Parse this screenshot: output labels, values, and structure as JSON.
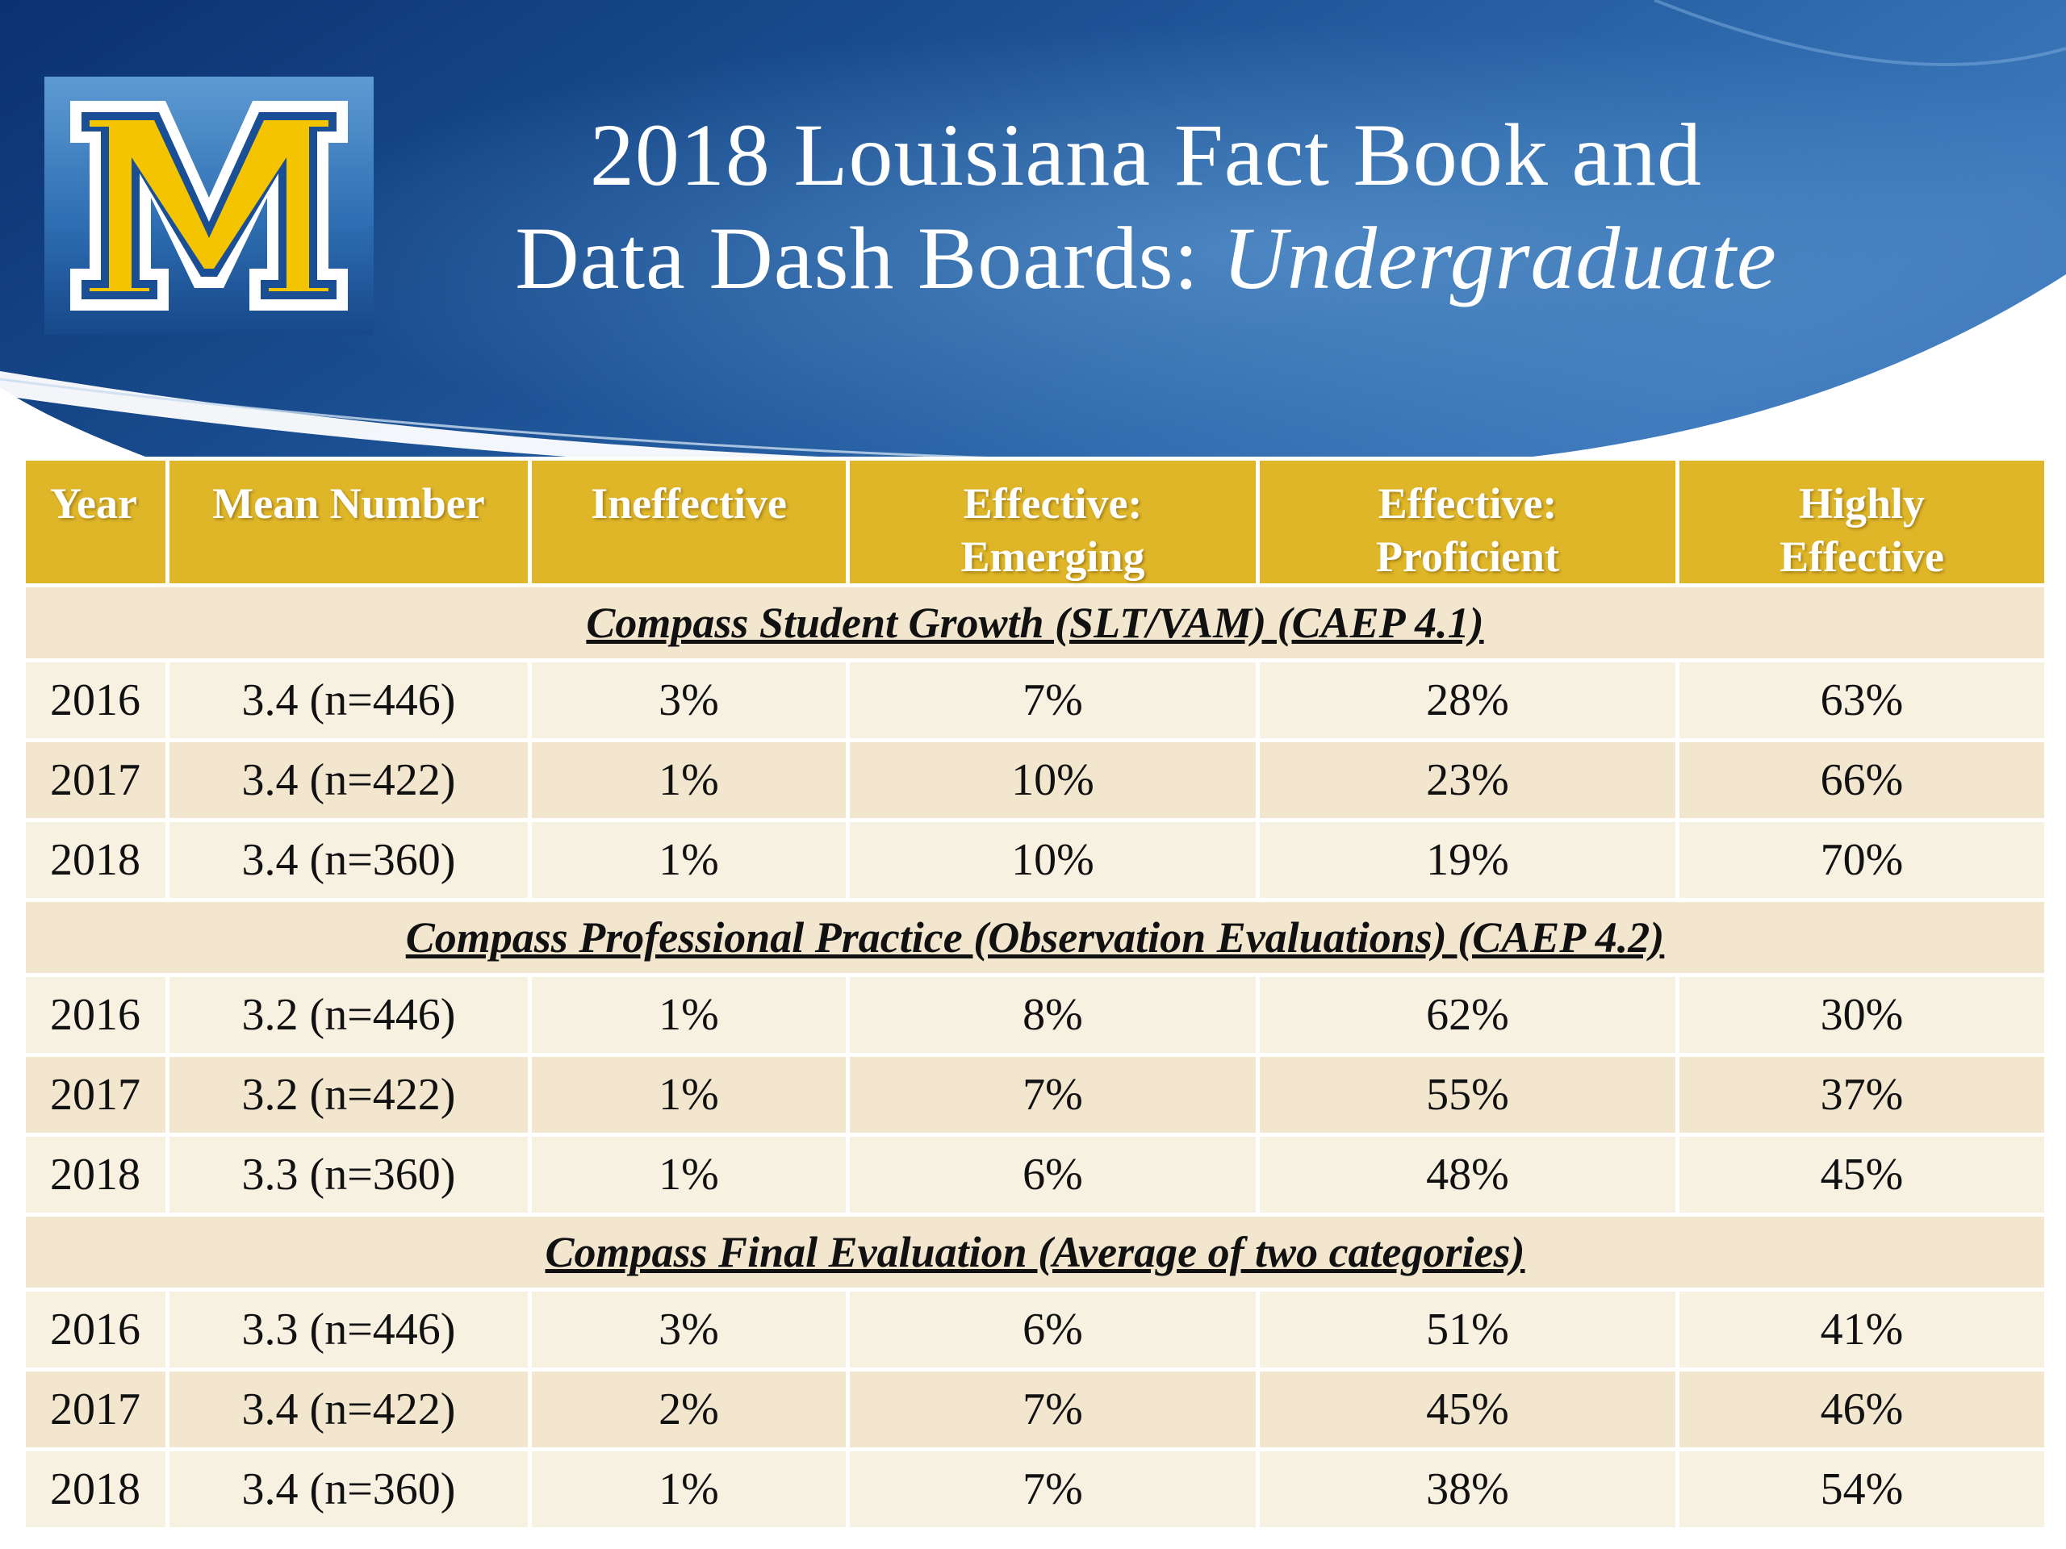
{
  "slide": {
    "title_line1": "2018 Louisiana Fact Book and",
    "title_line2_prefix": "Data Dash Boards: ",
    "title_line2_italic": "Undergraduate",
    "logo_letter": "M"
  },
  "colors": {
    "banner_dark": "#0e3a78",
    "banner_light": "#4a87c6",
    "header_gold": "#dfb628",
    "logo_gold": "#f5c400",
    "row_light": "#f7f1e2",
    "row_dark": "#f2e6cf"
  },
  "table": {
    "headers": [
      [
        "Year"
      ],
      [
        "Mean Number"
      ],
      [
        "Ineffective"
      ],
      [
        "Effective:",
        "Emerging"
      ],
      [
        "Effective:",
        "Proficient"
      ],
      [
        "Highly",
        "Effective"
      ]
    ],
    "sections": [
      {
        "title": "Compass Student Growth (SLT/VAM) (CAEP 4.1)",
        "rows": [
          [
            "2016",
            "3.4 (n=446)",
            "3%",
            "7%",
            "28%",
            "63%"
          ],
          [
            "2017",
            "3.4 (n=422)",
            "1%",
            "10%",
            "23%",
            "66%"
          ],
          [
            "2018",
            "3.4 (n=360)",
            "1%",
            "10%",
            "19%",
            "70%"
          ]
        ]
      },
      {
        "title": "Compass Professional Practice (Observation Evaluations) (CAEP 4.2)",
        "rows": [
          [
            "2016",
            "3.2 (n=446)",
            "1%",
            "8%",
            "62%",
            "30%"
          ],
          [
            "2017",
            "3.2 (n=422)",
            "1%",
            "7%",
            "55%",
            "37%"
          ],
          [
            "2018",
            "3.3 (n=360)",
            "1%",
            "6%",
            "48%",
            "45%"
          ]
        ]
      },
      {
        "title": "Compass Final Evaluation (Average of  two categories)",
        "rows": [
          [
            "2016",
            "3.3 (n=446)",
            "3%",
            "6%",
            "51%",
            "41%"
          ],
          [
            "2017",
            "3.4 (n=422)",
            "2%",
            "7%",
            "45%",
            "46%"
          ],
          [
            "2018",
            "3.4 (n=360)",
            "1%",
            "7%",
            "38%",
            "54%"
          ]
        ]
      }
    ]
  }
}
